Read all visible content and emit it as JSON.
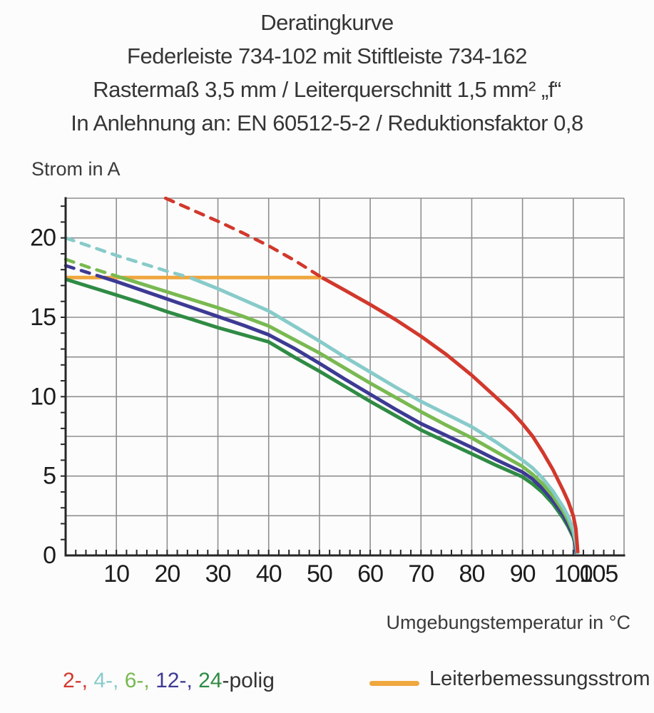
{
  "header": {
    "lines": [
      "Deratingkurve",
      "Federleiste 734-102 mit Stiftleiste 734-162",
      "Rastermaß 3,5 mm / Leiterquerschnitt 1,5 mm² „f“",
      "In Anlehnung an: EN 60512-5-2 / Reduktionsfaktor 0,8"
    ]
  },
  "legend": {
    "poles": {
      "items": [
        {
          "label": "2-,",
          "color": "#d2382c"
        },
        {
          "label": "4-,",
          "color": "#87cbc9"
        },
        {
          "label": "6-,",
          "color": "#79b951"
        },
        {
          "label": "12-,",
          "color": "#3d3a94"
        },
        {
          "label": "24",
          "color": "#2f8b44"
        }
      ],
      "suffix": "-polig",
      "separator": " "
    },
    "cap": {
      "label": "Leiterbemessungsstrom",
      "color": "#efa73e"
    }
  },
  "chart_data": {
    "type": "line",
    "title": "Deratingkurve",
    "xlabel": "Umgebungstemperatur in °C",
    "ylabel": "Strom in A",
    "xlim": [
      0,
      110
    ],
    "ylim": [
      0,
      22.5
    ],
    "x_grid_step": 10,
    "y_grid_step": 2.5,
    "x_minor_step": 2,
    "y_minor_step": 1,
    "grid": "on",
    "legend_position": "bottom",
    "x_ticks": [
      10,
      20,
      30,
      40,
      50,
      60,
      70,
      80,
      90,
      100,
      105
    ],
    "y_ticks": [
      0,
      5,
      10,
      15,
      20
    ],
    "series": [
      {
        "name": "Leiterbemessungsstrom",
        "color": "#efa73e",
        "solid": [
          [
            0,
            17.5
          ],
          [
            50.5,
            17.5
          ]
        ]
      },
      {
        "name": "24-polig",
        "color": "#2f8b44",
        "solid": [
          [
            0,
            17.4
          ],
          [
            5,
            16.9
          ],
          [
            10,
            16.4
          ],
          [
            15,
            15.9
          ],
          [
            20,
            15.35
          ],
          [
            25,
            14.85
          ],
          [
            30,
            14.35
          ],
          [
            35,
            13.9
          ],
          [
            40,
            13.45
          ],
          [
            45,
            12.5
          ],
          [
            50,
            11.6
          ],
          [
            55,
            10.65
          ],
          [
            60,
            9.7
          ],
          [
            65,
            8.8
          ],
          [
            70,
            7.9
          ],
          [
            75,
            7.15
          ],
          [
            80,
            6.4
          ],
          [
            85,
            5.65
          ],
          [
            90,
            4.95
          ],
          [
            92,
            4.5
          ],
          [
            94,
            3.95
          ],
          [
            96,
            3.25
          ],
          [
            98,
            2.35
          ],
          [
            99,
            1.8
          ],
          [
            100,
            1.15
          ],
          [
            100.4,
            0.65
          ],
          [
            100.6,
            0.1
          ]
        ]
      },
      {
        "name": "12-polig",
        "color": "#3d3a94",
        "dashed": [
          [
            0,
            18.25
          ],
          [
            4,
            17.85
          ],
          [
            7.5,
            17.5
          ]
        ],
        "solid": [
          [
            7.5,
            17.5
          ],
          [
            10,
            17.25
          ],
          [
            15,
            16.7
          ],
          [
            20,
            16.15
          ],
          [
            25,
            15.6
          ],
          [
            30,
            15.05
          ],
          [
            35,
            14.5
          ],
          [
            40,
            13.9
          ],
          [
            45,
            13.05
          ],
          [
            50,
            12.1
          ],
          [
            55,
            11.1
          ],
          [
            60,
            10.15
          ],
          [
            65,
            9.2
          ],
          [
            70,
            8.3
          ],
          [
            75,
            7.55
          ],
          [
            80,
            6.8
          ],
          [
            85,
            6.0
          ],
          [
            90,
            5.25
          ],
          [
            92,
            4.8
          ],
          [
            94,
            4.2
          ],
          [
            96,
            3.45
          ],
          [
            98,
            2.55
          ],
          [
            99,
            1.95
          ],
          [
            100,
            1.25
          ],
          [
            100.4,
            0.7
          ],
          [
            100.6,
            0.1
          ]
        ]
      },
      {
        "name": "6-polig",
        "color": "#79b951",
        "dashed": [
          [
            0,
            18.65
          ],
          [
            5,
            18.1
          ],
          [
            11,
            17.5
          ]
        ],
        "solid": [
          [
            11,
            17.5
          ],
          [
            15,
            17.1
          ],
          [
            20,
            16.6
          ],
          [
            25,
            16.1
          ],
          [
            30,
            15.6
          ],
          [
            35,
            15.05
          ],
          [
            40,
            14.45
          ],
          [
            45,
            13.6
          ],
          [
            50,
            12.75
          ],
          [
            55,
            11.8
          ],
          [
            60,
            10.85
          ],
          [
            65,
            9.95
          ],
          [
            70,
            9.05
          ],
          [
            75,
            8.2
          ],
          [
            80,
            7.4
          ],
          [
            85,
            6.5
          ],
          [
            90,
            5.6
          ],
          [
            92,
            5.1
          ],
          [
            94,
            4.5
          ],
          [
            96,
            3.75
          ],
          [
            98,
            2.8
          ],
          [
            99,
            2.2
          ],
          [
            100,
            1.45
          ],
          [
            100.5,
            0.75
          ],
          [
            100.8,
            0.1
          ]
        ]
      },
      {
        "name": "4-polig",
        "color": "#87cbc9",
        "dashed": [
          [
            0,
            20.0
          ],
          [
            5,
            19.45
          ],
          [
            10,
            18.9
          ],
          [
            15,
            18.4
          ],
          [
            20,
            17.9
          ],
          [
            24.5,
            17.5
          ]
        ],
        "solid": [
          [
            24.5,
            17.5
          ],
          [
            30,
            16.8
          ],
          [
            35,
            16.1
          ],
          [
            40,
            15.4
          ],
          [
            45,
            14.45
          ],
          [
            50,
            13.5
          ],
          [
            55,
            12.5
          ],
          [
            60,
            11.55
          ],
          [
            65,
            10.6
          ],
          [
            70,
            9.7
          ],
          [
            75,
            8.9
          ],
          [
            80,
            8.1
          ],
          [
            85,
            7.1
          ],
          [
            90,
            6.0
          ],
          [
            92,
            5.5
          ],
          [
            94,
            4.85
          ],
          [
            96,
            4.05
          ],
          [
            98,
            3.05
          ],
          [
            99,
            2.45
          ],
          [
            100,
            1.65
          ],
          [
            100.5,
            0.9
          ],
          [
            100.8,
            0.1
          ]
        ]
      },
      {
        "name": "2-polig",
        "color": "#d2382c",
        "dashed": [
          [
            19.7,
            22.5
          ],
          [
            25,
            21.75
          ],
          [
            30,
            21.05
          ],
          [
            35,
            20.3
          ],
          [
            40,
            19.5
          ],
          [
            45,
            18.6
          ],
          [
            50.5,
            17.5
          ]
        ],
        "solid": [
          [
            50.5,
            17.5
          ],
          [
            55,
            16.7
          ],
          [
            60,
            15.8
          ],
          [
            65,
            14.85
          ],
          [
            70,
            13.8
          ],
          [
            75,
            12.65
          ],
          [
            80,
            11.35
          ],
          [
            85,
            9.9
          ],
          [
            88,
            9.0
          ],
          [
            90,
            8.3
          ],
          [
            92,
            7.5
          ],
          [
            94,
            6.5
          ],
          [
            96,
            5.4
          ],
          [
            98,
            4.1
          ],
          [
            99,
            3.4
          ],
          [
            100,
            2.5
          ],
          [
            100.5,
            1.7
          ],
          [
            100.9,
            0.15
          ]
        ]
      }
    ]
  }
}
